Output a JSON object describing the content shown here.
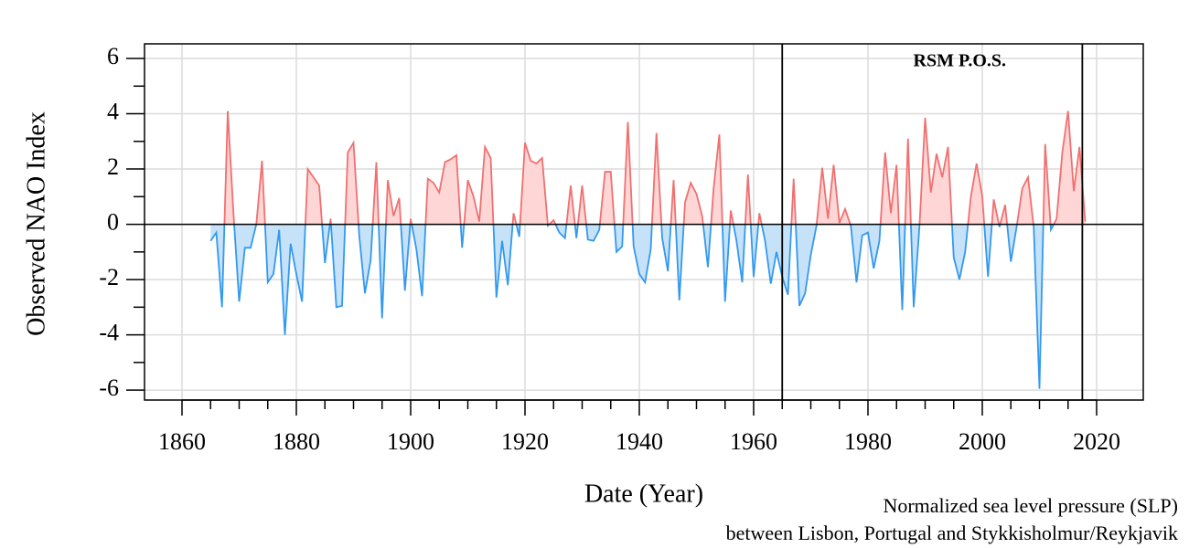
{
  "chart_data": {
    "type": "area",
    "ylabel": "Observed NAO Index",
    "xlabel": "Date (Year)",
    "caption": [
      "Normalized sea level pressure (SLP)",
      "between Lisbon, Portugal and Stykkisholmur/Reykjavik"
    ],
    "annotation": "RSM P.O.S.",
    "vlines": [
      1965,
      2017.5
    ],
    "positive_color": "#f07070",
    "positive_fill": "#ffd6d6",
    "negative_color": "#3399ee",
    "negative_fill": "#c6e2f8",
    "grid": true,
    "xlim": [
      1853.44,
      2028.16
    ],
    "ylim": [
      -6.36,
      6.53
    ],
    "xticks": [
      1860,
      1880,
      1900,
      1920,
      1940,
      1960,
      1980,
      2000,
      2020
    ],
    "xminorticks": [
      1865,
      1870,
      1875,
      1885,
      1890,
      1895,
      1905,
      1910,
      1915,
      1925,
      1930,
      1935,
      1945,
      1950,
      1955,
      1965,
      1970,
      1975,
      1985,
      1990,
      1995,
      2005,
      2010,
      2015
    ],
    "yticks": [
      -6,
      -4,
      -2,
      0,
      2,
      4,
      6
    ],
    "yminorticks": [
      -5,
      -3,
      -1,
      1,
      3,
      5
    ],
    "x": [
      1865,
      1866,
      1867,
      1868,
      1869,
      1870,
      1871,
      1872,
      1873,
      1874,
      1875,
      1876,
      1877,
      1878,
      1879,
      1880,
      1881,
      1882,
      1883,
      1884,
      1885,
      1886,
      1887,
      1888,
      1889,
      1890,
      1891,
      1892,
      1893,
      1894,
      1895,
      1896,
      1897,
      1898,
      1899,
      1900,
      1901,
      1902,
      1903,
      1904,
      1905,
      1906,
      1907,
      1908,
      1909,
      1910,
      1911,
      1912,
      1913,
      1914,
      1915,
      1916,
      1917,
      1918,
      1919,
      1920,
      1921,
      1922,
      1923,
      1924,
      1925,
      1926,
      1927,
      1928,
      1929,
      1930,
      1931,
      1932,
      1933,
      1934,
      1935,
      1936,
      1937,
      1938,
      1939,
      1940,
      1941,
      1942,
      1943,
      1944,
      1945,
      1946,
      1947,
      1948,
      1949,
      1950,
      1951,
      1952,
      1953,
      1954,
      1955,
      1956,
      1957,
      1958,
      1959,
      1960,
      1961,
      1962,
      1963,
      1964,
      1965,
      1966,
      1967,
      1968,
      1969,
      1970,
      1971,
      1972,
      1973,
      1974,
      1975,
      1976,
      1977,
      1978,
      1979,
      1980,
      1981,
      1982,
      1983,
      1984,
      1985,
      1986,
      1987,
      1988,
      1989,
      1990,
      1991,
      1992,
      1993,
      1994,
      1995,
      1996,
      1997,
      1998,
      1999,
      2000,
      2001,
      2002,
      2003,
      2004,
      2005,
      2006,
      2007,
      2008,
      2009,
      2010,
      2011,
      2012,
      2013,
      2014,
      2015,
      2016,
      2017,
      2018
    ],
    "values": [
      -0.6,
      -0.3,
      -3.0,
      4.1,
      0.4,
      -2.8,
      -0.85,
      -0.85,
      0.0,
      2.3,
      -2.1,
      -1.8,
      -0.2,
      -4.0,
      -0.7,
      -1.8,
      -2.8,
      2.0,
      1.7,
      1.4,
      -1.4,
      0.2,
      -3.0,
      -2.95,
      2.6,
      2.95,
      -0.4,
      -2.5,
      -1.3,
      2.25,
      -3.4,
      1.6,
      0.3,
      0.95,
      -2.4,
      0.2,
      -0.9,
      -2.6,
      1.65,
      1.5,
      1.15,
      2.25,
      2.35,
      2.5,
      -0.85,
      1.6,
      1.0,
      0.1,
      2.8,
      2.4,
      -2.65,
      -0.6,
      -2.2,
      0.4,
      -0.45,
      2.95,
      2.3,
      2.2,
      2.4,
      -0.05,
      0.15,
      -0.3,
      -0.5,
      1.4,
      -0.5,
      1.4,
      -0.55,
      -0.6,
      -0.2,
      1.9,
      1.9,
      -1.0,
      -0.8,
      3.7,
      -0.8,
      -1.8,
      -2.1,
      -0.9,
      3.3,
      -0.5,
      -1.7,
      1.6,
      -2.75,
      0.8,
      1.5,
      1.1,
      0.3,
      -1.55,
      1.3,
      3.25,
      -2.8,
      0.5,
      -0.6,
      -2.1,
      1.8,
      -1.9,
      0.4,
      -0.6,
      -2.15,
      -1.0,
      -1.9,
      -2.55,
      1.65,
      -2.95,
      -2.5,
      -1.1,
      -0.05,
      2.05,
      0.2,
      2.15,
      0.05,
      0.55,
      -0.05,
      -2.1,
      -0.4,
      -0.3,
      -1.6,
      -0.6,
      2.6,
      0.4,
      2.15,
      -3.1,
      3.1,
      -3.0,
      -0.1,
      3.85,
      1.15,
      2.55,
      1.7,
      2.8,
      -1.2,
      -2.0,
      -1.0,
      1.0,
      2.2,
      1.0,
      -1.9,
      0.9,
      -0.1,
      0.7,
      -1.35,
      -0.1,
      1.3,
      1.7,
      -0.1,
      -5.95,
      2.9,
      -0.2,
      0.2,
      2.6,
      4.1,
      1.2,
      2.8,
      0.1
    ]
  }
}
